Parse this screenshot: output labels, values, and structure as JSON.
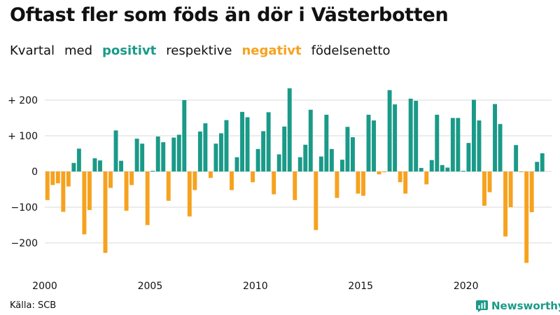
{
  "chart_data": {
    "type": "bar",
    "title": "Oftast fler som föds än dör i Västerbotten",
    "subtitle": {
      "part1": "Kvartal",
      "part2": "med",
      "positive_word": "positivt",
      "part3": "respektive",
      "negative_word": "negativt",
      "part4": "födelsenetto"
    },
    "xlabel": "",
    "ylabel": "",
    "ylim": [
      -280,
      260
    ],
    "y_ticks": [
      {
        "value": 200,
        "label": "+ 200"
      },
      {
        "value": 100,
        "label": "+ 100"
      },
      {
        "value": 0,
        "label": "0"
      },
      {
        "value": -100,
        "label": "−100"
      },
      {
        "value": -200,
        "label": "−200"
      }
    ],
    "x_ticks": [
      {
        "year": 2000,
        "label": "2000"
      },
      {
        "year": 2005,
        "label": "2005"
      },
      {
        "year": 2010,
        "label": "2010"
      },
      {
        "year": 2015,
        "label": "2015"
      },
      {
        "year": 2020,
        "label": "2020"
      }
    ],
    "start_year": 2000,
    "categories": [
      "2000 Q1",
      "2000 Q2",
      "2000 Q3",
      "2000 Q4",
      "2001 Q1",
      "2001 Q2",
      "2001 Q3",
      "2001 Q4",
      "2002 Q1",
      "2002 Q2",
      "2002 Q3",
      "2002 Q4",
      "2003 Q1",
      "2003 Q2",
      "2003 Q3",
      "2003 Q4",
      "2004 Q1",
      "2004 Q2",
      "2004 Q3",
      "2004 Q4",
      "2005 Q1",
      "2005 Q2",
      "2005 Q3",
      "2005 Q4",
      "2006 Q1",
      "2006 Q2",
      "2006 Q3",
      "2006 Q4",
      "2007 Q1",
      "2007 Q2",
      "2007 Q3",
      "2007 Q4",
      "2008 Q1",
      "2008 Q2",
      "2008 Q3",
      "2008 Q4",
      "2009 Q1",
      "2009 Q2",
      "2009 Q3",
      "2009 Q4",
      "2010 Q1",
      "2010 Q2",
      "2010 Q3",
      "2010 Q4",
      "2011 Q1",
      "2011 Q2",
      "2011 Q3",
      "2011 Q4",
      "2012 Q1",
      "2012 Q2",
      "2012 Q3",
      "2012 Q4",
      "2013 Q1",
      "2013 Q2",
      "2013 Q3",
      "2013 Q4",
      "2014 Q1",
      "2014 Q2",
      "2014 Q3",
      "2014 Q4",
      "2015 Q1",
      "2015 Q2",
      "2015 Q3",
      "2015 Q4",
      "2016 Q1",
      "2016 Q2",
      "2016 Q3",
      "2016 Q4",
      "2017 Q1",
      "2017 Q2",
      "2017 Q3",
      "2017 Q4",
      "2018 Q1",
      "2018 Q2",
      "2018 Q3",
      "2018 Q4",
      "2019 Q1",
      "2019 Q2",
      "2019 Q3",
      "2019 Q4",
      "2020 Q1",
      "2020 Q2",
      "2020 Q3",
      "2020 Q4",
      "2021 Q1",
      "2021 Q2",
      "2021 Q3",
      "2021 Q4",
      "2022 Q1",
      "2022 Q2",
      "2022 Q3",
      "2022 Q4",
      "2023 Q1",
      "2023 Q2",
      "2023 Q3",
      "2023 Q4"
    ],
    "values": [
      -80,
      -38,
      -33,
      -113,
      -42,
      24,
      64,
      -176,
      -108,
      37,
      31,
      -228,
      -46,
      115,
      30,
      -110,
      -38,
      92,
      78,
      -150,
      2,
      98,
      82,
      -82,
      95,
      103,
      200,
      -126,
      -52,
      112,
      135,
      -18,
      78,
      107,
      144,
      -52,
      40,
      167,
      152,
      -30,
      63,
      113,
      166,
      -64,
      48,
      126,
      233,
      -80,
      40,
      75,
      173,
      -164,
      42,
      159,
      63,
      -74,
      33,
      125,
      96,
      -62,
      -68,
      159,
      143,
      -8,
      -2,
      228,
      188,
      -30,
      -62,
      204,
      198,
      10,
      -36,
      32,
      159,
      18,
      11,
      150,
      150,
      2,
      80,
      201,
      143,
      -96,
      -58,
      189,
      133,
      -182,
      -100,
      74,
      -2,
      -256,
      -114,
      27,
      51,
      0
    ],
    "colors": {
      "positive": "#1a9a88",
      "negative": "#f6a21f",
      "grid": "#d9d9d9"
    }
  },
  "footer": {
    "source": "Källa: SCB",
    "brand": "Newsworthy"
  }
}
